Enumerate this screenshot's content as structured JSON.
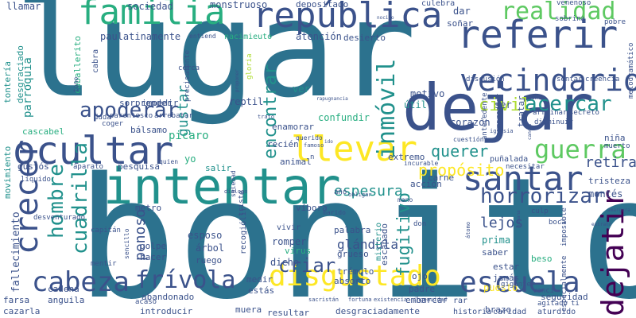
{
  "colors": {
    "background": "#ffffff",
    "palette": [
      "#440154",
      "#3b528b",
      "#2c728e",
      "#21918c",
      "#28ae80",
      "#5ec962",
      "#addc30",
      "#fde725"
    ]
  },
  "words": [
    {
      "text": "lugar",
      "color": "#2c728e"
    },
    {
      "text": "bonito",
      "color": "#2c728e"
    },
    {
      "text": "dejar",
      "color": "#3b528b"
    },
    {
      "text": "intentar",
      "color": "#21918c"
    },
    {
      "text": "ocultar",
      "color": "#3b528b"
    },
    {
      "text": "república",
      "color": "#3b528b"
    },
    {
      "text": "familia",
      "color": "#28ae80"
    },
    {
      "text": "referir",
      "color": "#3b528b"
    },
    {
      "text": "llevar",
      "color": "#fde725"
    },
    {
      "text": "vecindario",
      "color": "#3b528b"
    },
    {
      "text": "santar",
      "color": "#3b528b"
    },
    {
      "text": "crecer",
      "color": "#3b528b"
    },
    {
      "text": "escuela",
      "color": "#3b528b"
    },
    {
      "text": "disgustado",
      "color": "#fde725"
    },
    {
      "text": "cabeza",
      "color": "#3b528b"
    },
    {
      "text": "frívola",
      "color": "#3b528b"
    },
    {
      "text": "dejatir",
      "color": "#440154"
    },
    {
      "text": "guerra",
      "color": "#5ec962"
    },
    {
      "text": "realidad",
      "color": "#5ec962"
    },
    {
      "text": "inmóvil",
      "color": "#21918c"
    },
    {
      "text": "acercar",
      "color": "#21918c"
    },
    {
      "text": "horrorizar",
      "color": "#3b528b"
    },
    {
      "text": "apoderar",
      "color": "#3b528b"
    },
    {
      "text": "hombre",
      "color": "#21918c"
    },
    {
      "text": "cuadrilla",
      "color": "#21918c"
    },
    {
      "text": "encontrar",
      "color": "#21918c"
    },
    {
      "text": "fugitivo",
      "color": "#21918c"
    },
    {
      "text": "propósito",
      "color": "#fde725"
    },
    {
      "text": "civil",
      "color": "#addc30"
    },
    {
      "text": "querer",
      "color": "#21918c"
    },
    {
      "text": "retirar",
      "color": "#3b528b"
    },
    {
      "text": "espesura",
      "color": "#21918c"
    },
    {
      "text": "lejos",
      "color": "#3b528b"
    },
    {
      "text": "penoso",
      "color": "#3b528b"
    },
    {
      "text": "criar",
      "color": "#3b528b"
    },
    {
      "text": "gustar",
      "color": "#21918c"
    },
    {
      "text": "glándula",
      "color": "#3b528b"
    },
    {
      "text": "parroquia",
      "color": "#21918c"
    },
    {
      "text": "sociedad",
      "color": "#3b528b"
    },
    {
      "text": "monstruoso",
      "color": "#3b528b"
    },
    {
      "text": "depositado",
      "color": "#3b528b"
    },
    {
      "text": "llamar",
      "color": "#3b528b"
    },
    {
      "text": "paulatinamente",
      "color": "#3b528b"
    },
    {
      "text": "entiend",
      "color": "#3b528b"
    },
    {
      "text": "nacimieuto",
      "color": "#28ae80"
    },
    {
      "text": "atención",
      "color": "#3b528b"
    },
    {
      "text": "desierto",
      "color": "#3b528b"
    },
    {
      "text": "dar",
      "color": "#3b528b"
    },
    {
      "text": "soñar",
      "color": "#3b528b"
    },
    {
      "text": "caballerito",
      "color": "#28ae80"
    },
    {
      "text": "cabra",
      "color": "#3b528b"
    },
    {
      "text": "impedir",
      "color": "#3b528b"
    },
    {
      "text": "sorprender",
      "color": "#3b528b"
    },
    {
      "text": "desgraciado",
      "color": "#21918c"
    },
    {
      "text": "tontería",
      "color": "#21918c"
    },
    {
      "text": "movimiento",
      "color": "#21918c"
    },
    {
      "text": "reptil",
      "color": "#3b528b"
    },
    {
      "text": "motivo",
      "color": "#3b528b"
    },
    {
      "text": "útil",
      "color": "#21918c"
    },
    {
      "text": "ver",
      "color": "#21918c"
    },
    {
      "text": "ser",
      "color": "#3b528b"
    },
    {
      "text": "confundir",
      "color": "#28ae80"
    },
    {
      "text": "corazón",
      "color": "#3b528b"
    },
    {
      "text": "picaro",
      "color": "#28ae80"
    },
    {
      "text": "bálsamo",
      "color": "#3b528b"
    },
    {
      "text": "enamorar",
      "color": "#3b528b"
    },
    {
      "text": "cascabel",
      "color": "#28ae80"
    },
    {
      "text": "gustós",
      "color": "#3b528b"
    },
    {
      "text": "pesquisa",
      "color": "#3b528b"
    },
    {
      "text": "extremo",
      "color": "#3b528b"
    },
    {
      "text": "animal",
      "color": "#3b528b"
    },
    {
      "text": "acción",
      "color": "#3b528b"
    },
    {
      "text": "carne",
      "color": "#3b528b"
    },
    {
      "text": "salir",
      "color": "#21918c"
    },
    {
      "text": "recién",
      "color": "#3b528b"
    },
    {
      "text": "fallecimiento",
      "color": "#3b528b"
    },
    {
      "text": "metro",
      "color": "#3b528b"
    },
    {
      "text": "víbora",
      "color": "#3b528b"
    },
    {
      "text": "vivir",
      "color": "#3b528b"
    },
    {
      "text": "romper",
      "color": "#3b528b"
    },
    {
      "text": "recogiólir",
      "color": "#3b528b"
    },
    {
      "text": "virus",
      "color": "#28ae80"
    },
    {
      "text": "dicho",
      "color": "#3b528b"
    },
    {
      "text": "palabra",
      "color": "#3b528b"
    },
    {
      "text": "escapado",
      "color": "#3b528b"
    },
    {
      "text": "grueso",
      "color": "#3b528b"
    },
    {
      "text": "misterio",
      "color": "#21918c"
    },
    {
      "text": "trémulo",
      "color": "#3b528b"
    },
    {
      "text": "absorto",
      "color": "#3b528b"
    },
    {
      "text": "prima",
      "color": "#21918c"
    },
    {
      "text": "saber",
      "color": "#3b528b"
    },
    {
      "text": "estar",
      "color": "#3b528b"
    },
    {
      "text": "jamás",
      "color": "#3b528b"
    },
    {
      "text": "ojo",
      "color": "#3b528b"
    },
    {
      "text": "beso",
      "color": "#28ae80"
    },
    {
      "text": "esposo",
      "color": "#3b528b"
    },
    {
      "text": "árbol",
      "color": "#3b528b"
    },
    {
      "text": "ruego",
      "color": "#3b528b"
    },
    {
      "text": "golpe",
      "color": "#3b528b"
    },
    {
      "text": "hacer",
      "color": "#3b528b"
    },
    {
      "text": "medir",
      "color": "#3b528b"
    },
    {
      "text": "estás",
      "color": "#3b528b"
    },
    {
      "text": "cadena",
      "color": "#3b528b"
    },
    {
      "text": "anguila",
      "color": "#3b528b"
    },
    {
      "text": "abandonado",
      "color": "#3b528b"
    },
    {
      "text": "padre",
      "color": "#3b528b"
    },
    {
      "text": "embarcar",
      "color": "#3b528b"
    },
    {
      "text": "puesto",
      "color": "#fde725"
    },
    {
      "text": "seguridad",
      "color": "#3b528b"
    },
    {
      "text": "brazo",
      "color": "#3b528b"
    },
    {
      "text": "muera",
      "color": "#3b528b"
    },
    {
      "text": "farsa",
      "color": "#3b528b"
    },
    {
      "text": "cazarla",
      "color": "#3b528b"
    },
    {
      "text": "introducir",
      "color": "#3b528b"
    },
    {
      "text": "resultar",
      "color": "#3b528b"
    },
    {
      "text": "desgraciadamente",
      "color": "#3b528b"
    },
    {
      "text": "historia",
      "color": "#3b528b"
    },
    {
      "text": "caridad",
      "color": "#3b528b"
    },
    {
      "text": "aturdido",
      "color": "#3b528b"
    },
    {
      "text": "montés",
      "color": "#3b528b"
    },
    {
      "text": "tristeza",
      "color": "#3b528b"
    },
    {
      "text": "niña",
      "color": "#3b528b"
    },
    {
      "text": "muerto",
      "color": "#3b528b"
    },
    {
      "text": "puñalada",
      "color": "#3b528b"
    },
    {
      "text": "necesitar",
      "color": "#3b528b"
    },
    {
      "text": "culebra",
      "color": "#3b528b"
    },
    {
      "text": "venenoso",
      "color": "#3b528b"
    },
    {
      "text": "sobrina",
      "color": "#3b528b"
    },
    {
      "text": "pobre",
      "color": "#3b528b"
    },
    {
      "text": "sentar",
      "color": "#3b528b"
    },
    {
      "text": "creencia",
      "color": "#3b528b"
    },
    {
      "text": "discusión",
      "color": "#3b528b"
    },
    {
      "text": "arruinar",
      "color": "#3b528b"
    },
    {
      "text": "secreto",
      "color": "#3b528b"
    },
    {
      "text": "disminuir",
      "color": "#3b528b"
    },
    {
      "text": "tratar",
      "color": "#3b528b"
    },
    {
      "text": "comprender",
      "color": "#3b528b"
    },
    {
      "text": "antecedente",
      "color": "#3b528b"
    },
    {
      "text": "cerca",
      "color": "#3b528b"
    },
    {
      "text": "precisamente",
      "color": "#3b528b"
    },
    {
      "text": "arrebatar",
      "color": "#3b528b"
    },
    {
      "text": "parentesco",
      "color": "#3b528b"
    },
    {
      "text": "duda",
      "color": "#3b528b"
    },
    {
      "text": "coger",
      "color": "#3b528b"
    },
    {
      "text": "gloria",
      "color": "#addc30"
    },
    {
      "text": "boca",
      "color": "#3b528b"
    },
    {
      "text": "culp",
      "color": "#3b528b"
    },
    {
      "text": "gigante",
      "color": "#3b528b"
    },
    {
      "text": "venci",
      "color": "#3b528b"
    },
    {
      "text": "agitado",
      "color": "#3b528b"
    },
    {
      "text": "especialmente",
      "color": "#3b528b"
    },
    {
      "text": "imposible",
      "color": "#3b528b"
    },
    {
      "text": "melodramático",
      "color": "#3b528b"
    },
    {
      "text": "capitán",
      "color": "#3b528b"
    },
    {
      "text": "mentir",
      "color": "#3b528b"
    },
    {
      "text": "acaso",
      "color": "#3b528b"
    },
    {
      "text": "don",
      "color": "#3b528b"
    },
    {
      "text": "rar",
      "color": "#3b528b"
    },
    {
      "text": "fortuna",
      "color": "#3b528b"
    },
    {
      "text": "existencia",
      "color": "#3b528b"
    },
    {
      "text": "sacristán",
      "color": "#3b528b"
    },
    {
      "text": "ingenuidad",
      "color": "#3b528b"
    },
    {
      "text": "aparato",
      "color": "#3b528b"
    },
    {
      "text": "yo",
      "color": "#28ae80"
    },
    {
      "text": "quien",
      "color": "#3b528b"
    },
    {
      "text": "soledad",
      "color": "#3b528b"
    },
    {
      "text": "diálogo",
      "color": "#3b528b"
    },
    {
      "text": "triste",
      "color": "#3b528b"
    },
    {
      "text": "marido",
      "color": "#3b528b"
    },
    {
      "text": "año",
      "color": "#3b528b"
    },
    {
      "text": "obligar",
      "color": "#3b528b"
    },
    {
      "text": "mano",
      "color": "#3b528b"
    },
    {
      "text": "incurable",
      "color": "#3b528b"
    },
    {
      "text": "cuestión",
      "color": "#3b528b"
    },
    {
      "text": "famoso",
      "color": "#3b528b"
    },
    {
      "text": "querido",
      "color": "#3b528b"
    },
    {
      "text": "rapugnancia",
      "color": "#3b528b"
    },
    {
      "text": "nocivo",
      "color": "#3b528b"
    },
    {
      "text": "iglesia",
      "color": "#3b528b"
    },
    {
      "text": "cancer",
      "color": "#3b528b"
    },
    {
      "text": "extraño",
      "color": "#3b528b"
    },
    {
      "text": "amargura",
      "color": "#3b528b"
    },
    {
      "text": "humana",
      "color": "#3b528b"
    },
    {
      "text": "átomo",
      "color": "#3b528b"
    },
    {
      "text": "proponer",
      "color": "#3b528b"
    },
    {
      "text": "líquido",
      "color": "#3b528b"
    },
    {
      "text": "desventurado",
      "color": "#3b528b"
    },
    {
      "text": "sencillo",
      "color": "#3b528b"
    },
    {
      "text": "tono",
      "color": "#3b528b"
    },
    {
      "text": "trato",
      "color": "#3b528b"
    },
    {
      "text": "ti",
      "color": "#3b528b"
    },
    {
      "text": "n",
      "color": "#3b528b"
    },
    {
      "text": "ido",
      "color": "#3b528b"
    },
    {
      "text": "gente",
      "color": "#3b528b"
    }
  ]
}
